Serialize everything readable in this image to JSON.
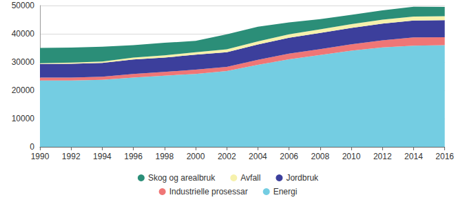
{
  "chart_data": {
    "type": "area",
    "stacked": true,
    "grid": true,
    "legend": "bottom",
    "categories": [
      "1990",
      "1992",
      "1994",
      "1996",
      "1998",
      "2000",
      "2002",
      "2004",
      "2006",
      "2008",
      "2010",
      "2012",
      "2014",
      "2016"
    ],
    "ylim": [
      0,
      50000
    ],
    "yticks": [
      0,
      10000,
      20000,
      30000,
      40000,
      50000
    ],
    "series": [
      {
        "name": "Energi",
        "color": "#74cde2",
        "values": [
          23500,
          23500,
          23700,
          24500,
          25200,
          25800,
          26800,
          29000,
          31000,
          32500,
          34000,
          35200,
          35800,
          36000
        ]
      },
      {
        "name": "Industrielle prosessar",
        "color": "#ef7676",
        "values": [
          1000,
          1000,
          1100,
          1300,
          1300,
          1500,
          1500,
          1800,
          2000,
          2100,
          2300,
          2500,
          2900,
          2800
        ]
      },
      {
        "name": "Jordbruk",
        "color": "#3c3f9c",
        "values": [
          4800,
          4900,
          4900,
          5100,
          5100,
          5300,
          5200,
          5400,
          5600,
          5700,
          5800,
          5900,
          6000,
          6000
        ]
      },
      {
        "name": "Avfall",
        "color": "#f6f1ac",
        "values": [
          300,
          400,
          500,
          700,
          800,
          900,
          1000,
          1100,
          1200,
          1300,
          1300,
          1400,
          1400,
          1400
        ]
      },
      {
        "name": "Skog og arealbruk",
        "color": "#2b8e78",
        "values": [
          5400,
          5300,
          5200,
          4400,
          4400,
          4000,
          5300,
          5200,
          4200,
          3600,
          3300,
          3300,
          3500,
          3300
        ]
      }
    ]
  }
}
